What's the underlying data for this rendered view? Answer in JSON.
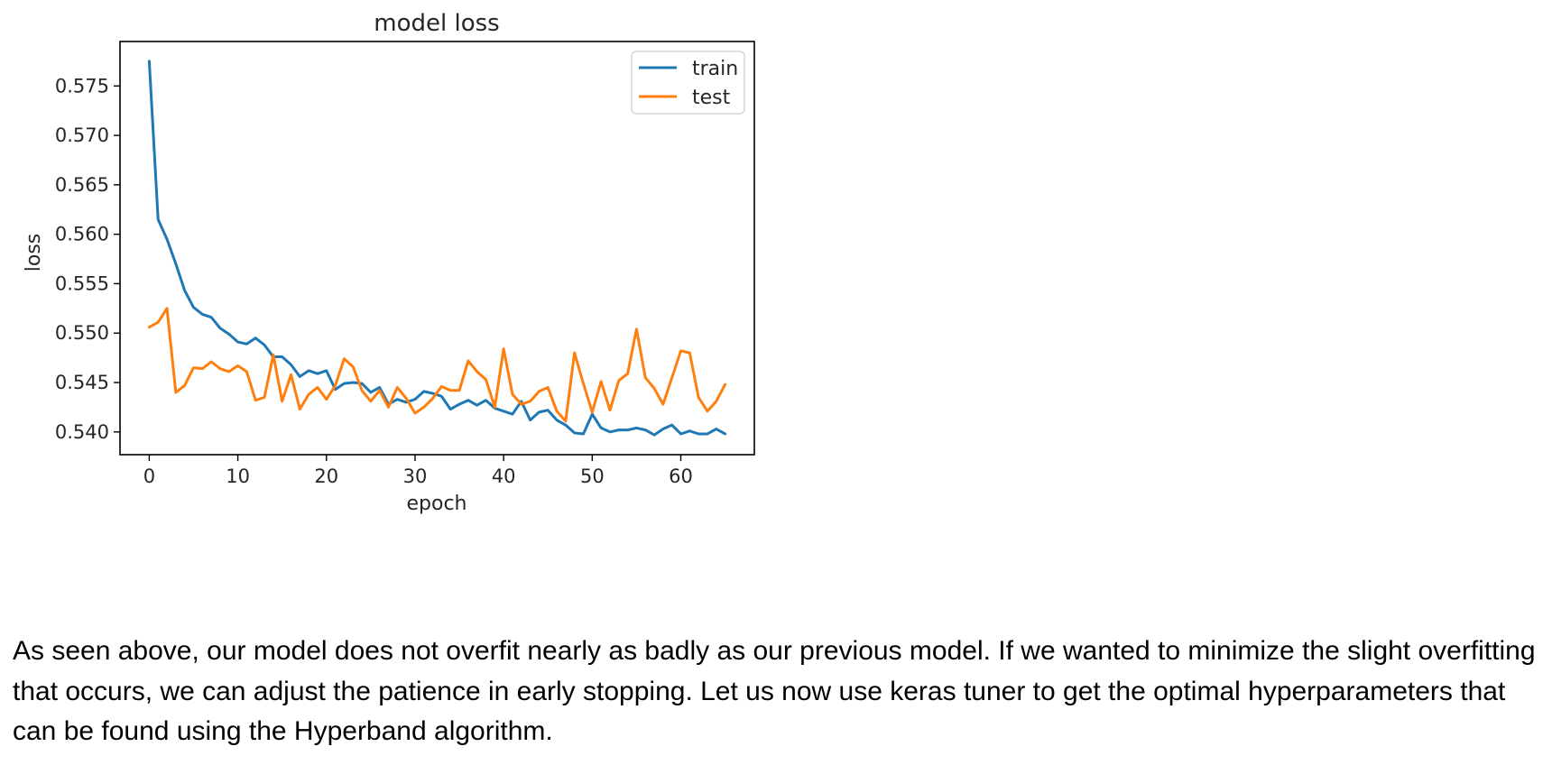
{
  "chart_data": {
    "type": "line",
    "title": "model loss",
    "xlabel": "epoch",
    "ylabel": "loss",
    "xlim": [
      -3.3,
      68.3
    ],
    "ylim": [
      0.5377,
      0.5795
    ],
    "x_ticks": [
      0,
      10,
      20,
      30,
      40,
      50,
      60
    ],
    "y_ticks": [
      0.54,
      0.545,
      0.55,
      0.555,
      0.56,
      0.565,
      0.57,
      0.575
    ],
    "x_tick_labels": [
      "0",
      "10",
      "20",
      "30",
      "40",
      "50",
      "60"
    ],
    "y_tick_labels": [
      "0.540",
      "0.545",
      "0.550",
      "0.555",
      "0.560",
      "0.565",
      "0.570",
      "0.575"
    ],
    "grid": false,
    "legend_position": "top-right",
    "x": [
      0,
      1,
      2,
      3,
      4,
      5,
      6,
      7,
      8,
      9,
      10,
      11,
      12,
      13,
      14,
      15,
      16,
      17,
      18,
      19,
      20,
      21,
      22,
      23,
      24,
      25,
      26,
      27,
      28,
      29,
      30,
      31,
      32,
      33,
      34,
      35,
      36,
      37,
      38,
      39,
      40,
      41,
      42,
      43,
      44,
      45,
      46,
      47,
      48,
      49,
      50,
      51,
      52,
      53,
      54,
      55,
      56,
      57,
      58,
      59,
      60,
      61,
      62,
      63,
      64,
      65
    ],
    "series": [
      {
        "name": "train",
        "color": "#1f77b4",
        "values": [
          0.5775,
          0.5615,
          0.5595,
          0.557,
          0.5543,
          0.5526,
          0.5519,
          0.5516,
          0.5505,
          0.5499,
          0.5491,
          0.5489,
          0.5495,
          0.5488,
          0.5476,
          0.5476,
          0.5468,
          0.5456,
          0.5462,
          0.5459,
          0.5462,
          0.5443,
          0.5449,
          0.545,
          0.5449,
          0.544,
          0.5445,
          0.5428,
          0.5433,
          0.543,
          0.5433,
          0.5441,
          0.5439,
          0.5436,
          0.5423,
          0.5428,
          0.5432,
          0.5427,
          0.5432,
          0.5424,
          0.5421,
          0.5418,
          0.5431,
          0.5412,
          0.542,
          0.5422,
          0.5412,
          0.5407,
          0.5399,
          0.5398,
          0.5418,
          0.5404,
          0.54,
          0.5402,
          0.5402,
          0.5404,
          0.5402,
          0.5397,
          0.5403,
          0.5407,
          0.5398,
          0.5401,
          0.5398,
          0.5398,
          0.5403,
          0.5398
        ]
      },
      {
        "name": "test",
        "color": "#ff7f0e",
        "values": [
          0.5506,
          0.5511,
          0.5525,
          0.544,
          0.5447,
          0.5465,
          0.5464,
          0.5471,
          0.5464,
          0.5461,
          0.5467,
          0.5461,
          0.5432,
          0.5435,
          0.5478,
          0.5431,
          0.5458,
          0.5423,
          0.5438,
          0.5445,
          0.5433,
          0.5447,
          0.5474,
          0.5466,
          0.5442,
          0.5431,
          0.5442,
          0.5425,
          0.5445,
          0.5434,
          0.5419,
          0.5425,
          0.5434,
          0.5446,
          0.5442,
          0.5442,
          0.5472,
          0.5461,
          0.5453,
          0.5425,
          0.5484,
          0.5438,
          0.5428,
          0.5431,
          0.5441,
          0.5445,
          0.5421,
          0.5411,
          0.548,
          0.5449,
          0.542,
          0.5451,
          0.5422,
          0.5452,
          0.5459,
          0.5504,
          0.5455,
          0.5444,
          0.5428,
          0.5455,
          0.5482,
          0.548,
          0.5435,
          0.5421,
          0.5431,
          0.5448
        ]
      }
    ]
  },
  "caption": "As seen above, our model does not overfit nearly as badly as our previous model. If we wanted to minimize the slight overfitting that occurs, we can adjust the patience in early stopping. Let us now use keras tuner to get the optimal hyperparameters that can be found using the Hyperband algorithm."
}
